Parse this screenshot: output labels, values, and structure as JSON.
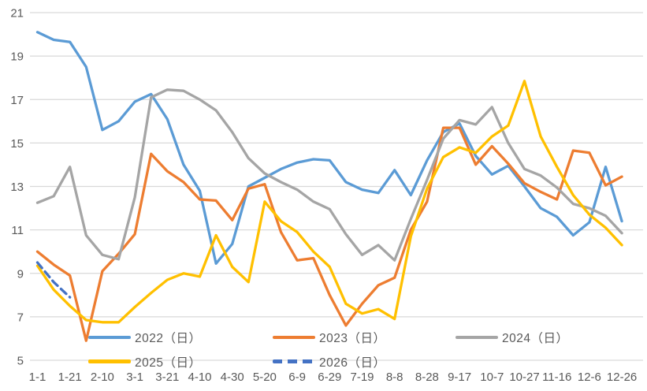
{
  "chart_data": {
    "type": "line",
    "title": "",
    "xlabel": "",
    "ylabel": "",
    "x_axis": {
      "tick_labels": [
        "1-1",
        "1-21",
        "2-10",
        "3-1",
        "3-21",
        "4-10",
        "4-30",
        "5-20",
        "6-9",
        "6-29",
        "7-19",
        "8-8",
        "8-28",
        "9-17",
        "10-7",
        "10-27",
        "11-16",
        "12-6",
        "12-26"
      ],
      "points_between_ticks": 2,
      "n_points": 37,
      "interval_days": 10
    },
    "y_axis": {
      "ticks": [
        21,
        19,
        17,
        15,
        13,
        11,
        9,
        7,
        5
      ],
      "min": 5,
      "max": 21
    },
    "grid": "horizontal",
    "legend_position": "bottom",
    "series": [
      {
        "name": "2022（日）",
        "color": "#5B9BD5",
        "dashed": false,
        "values": [
          20.1,
          19.75,
          19.65,
          18.5,
          15.6,
          16.0,
          16.9,
          17.25,
          16.1,
          14.0,
          12.8,
          9.45,
          10.35,
          13.0,
          13.4,
          13.8,
          14.1,
          14.25,
          14.2,
          13.2,
          12.85,
          12.7,
          13.75,
          12.6,
          14.2,
          15.5,
          15.9,
          14.4,
          13.55,
          13.95,
          13.0,
          12.0,
          11.6,
          10.75,
          11.35,
          13.9,
          11.4
        ]
      },
      {
        "name": "2023（日）",
        "color": "#ED7D31",
        "dashed": false,
        "values": [
          10.0,
          9.4,
          8.9,
          5.9,
          9.1,
          9.9,
          10.8,
          14.5,
          13.7,
          13.2,
          12.4,
          12.35,
          11.45,
          12.9,
          13.1,
          10.9,
          9.6,
          9.7,
          8.0,
          6.6,
          7.6,
          8.45,
          8.8,
          11.0,
          12.3,
          15.7,
          15.7,
          14.0,
          14.85,
          14.05,
          13.15,
          12.75,
          12.4,
          14.65,
          14.55,
          13.05,
          13.45
        ]
      },
      {
        "name": "2024（日）",
        "color": "#A5A5A5",
        "dashed": false,
        "values": [
          12.25,
          12.55,
          13.9,
          10.75,
          9.85,
          9.65,
          12.5,
          17.1,
          17.45,
          17.4,
          17.0,
          16.5,
          15.5,
          14.3,
          13.6,
          13.2,
          12.85,
          12.3,
          11.95,
          10.8,
          9.85,
          10.3,
          9.6,
          11.5,
          13.3,
          15.2,
          16.05,
          15.85,
          16.65,
          15.0,
          13.8,
          13.5,
          12.95,
          12.2,
          12.0,
          11.65,
          10.85
        ]
      },
      {
        "name": "2025（日）",
        "color": "#FFC000",
        "dashed": false,
        "values": [
          9.35,
          8.25,
          7.5,
          6.85,
          6.75,
          6.75,
          7.45,
          8.1,
          8.7,
          9.0,
          8.85,
          10.75,
          9.3,
          8.6,
          12.3,
          11.4,
          10.9,
          10.0,
          9.3,
          7.6,
          7.15,
          7.35,
          6.9,
          10.7,
          12.9,
          14.35,
          14.8,
          14.55,
          15.3,
          15.8,
          17.85,
          15.3,
          13.9,
          12.6,
          11.7,
          11.1,
          10.3
        ]
      },
      {
        "name": "2026（日）",
        "color": "#4472C4",
        "dashed": true,
        "values": [
          9.5,
          8.6,
          7.9,
          null,
          null,
          null,
          null,
          null,
          null,
          null,
          null,
          null,
          null,
          null,
          null,
          null,
          null,
          null,
          null,
          null,
          null,
          null,
          null,
          null,
          null,
          null,
          null,
          null,
          null,
          null,
          null,
          null,
          null,
          null,
          null,
          null,
          null
        ]
      }
    ]
  },
  "colors": {
    "background": "#FFFFFF",
    "gridline": "#D9D9D9",
    "axis_text": "#595959"
  }
}
